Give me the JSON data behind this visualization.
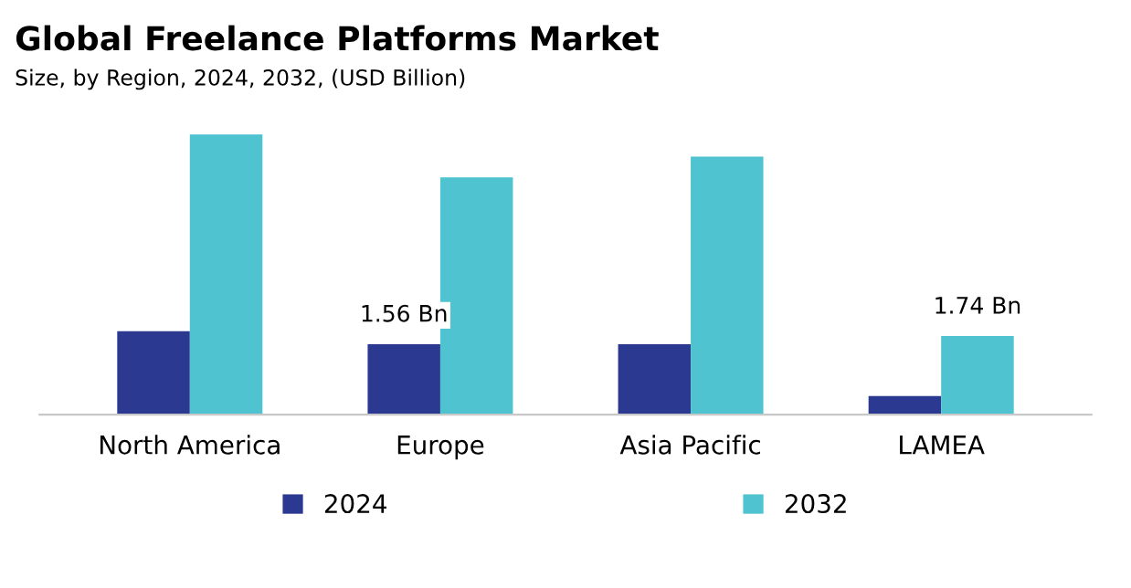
{
  "chart_data": {
    "type": "bar",
    "title": "Global Freelance Platforms Market",
    "subtitle": "Size, by Region, 2024, 2032, (USD Billion)",
    "tick_labels": "x",
    "categories": [
      "North America",
      "Europe",
      "Asia Pacific",
      "LAMEA"
    ],
    "series": [
      {
        "name": "2024",
        "color": "#2b3990",
        "values": [
          1.85,
          1.56,
          1.56,
          0.41
        ],
        "value_labels": [
          null,
          "1.56 Bn",
          null,
          null
        ]
      },
      {
        "name": "2032",
        "color": "#4fc3d0",
        "values": [
          6.21,
          5.26,
          5.72,
          1.74
        ],
        "value_labels": [
          null,
          null,
          null,
          "1.74 Bn"
        ]
      }
    ],
    "legend": "bottom",
    "grid": false
  }
}
